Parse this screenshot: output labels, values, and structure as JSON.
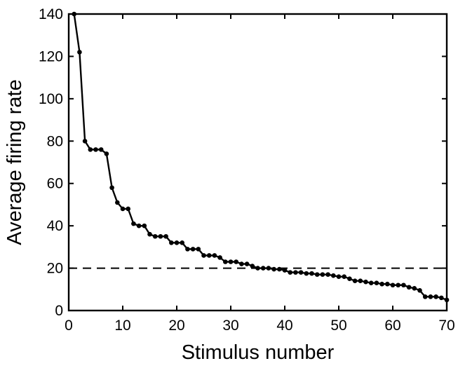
{
  "chart_data": {
    "type": "line",
    "xlabel": "Stimulus number",
    "ylabel": "Average firing rate",
    "xlim": [
      0,
      70
    ],
    "ylim": [
      0,
      140
    ],
    "xticks": [
      0,
      10,
      20,
      30,
      40,
      50,
      60,
      70
    ],
    "yticks": [
      0,
      20,
      40,
      60,
      80,
      100,
      120,
      140
    ],
    "grid": false,
    "reference_line": {
      "y": 20,
      "style": "dashed"
    },
    "series": [
      {
        "x": [
          1,
          2,
          3,
          4,
          5,
          6,
          7,
          8,
          9,
          10,
          11,
          12,
          13,
          14,
          15,
          16,
          17,
          18,
          19,
          20,
          21,
          22,
          23,
          24,
          25,
          26,
          27,
          28,
          29,
          30,
          31,
          32,
          33,
          34,
          35,
          36,
          37,
          38,
          39,
          40,
          41,
          42,
          43,
          44,
          45,
          46,
          47,
          48,
          49,
          50,
          51,
          52,
          53,
          54,
          55,
          56,
          57,
          58,
          59,
          60,
          61,
          62,
          63,
          64,
          65,
          66,
          67,
          68,
          69,
          70
        ],
        "y": [
          140,
          122,
          80,
          76,
          76,
          76,
          74,
          58,
          51,
          48,
          48,
          41,
          40,
          40,
          36,
          35,
          35,
          35,
          32,
          32,
          32,
          29,
          29,
          29,
          26,
          26,
          26,
          25,
          23,
          23,
          23,
          22,
          22,
          21,
          20,
          20,
          20,
          19.5,
          19.5,
          19,
          18,
          18,
          18,
          17.5,
          17.5,
          17,
          17,
          17,
          16.5,
          16,
          16,
          15,
          14,
          14,
          13.5,
          13,
          13,
          12.5,
          12.5,
          12,
          12,
          12,
          11,
          10.5,
          9.5,
          6.5,
          6.5,
          6.5,
          6,
          5
        ]
      }
    ]
  }
}
